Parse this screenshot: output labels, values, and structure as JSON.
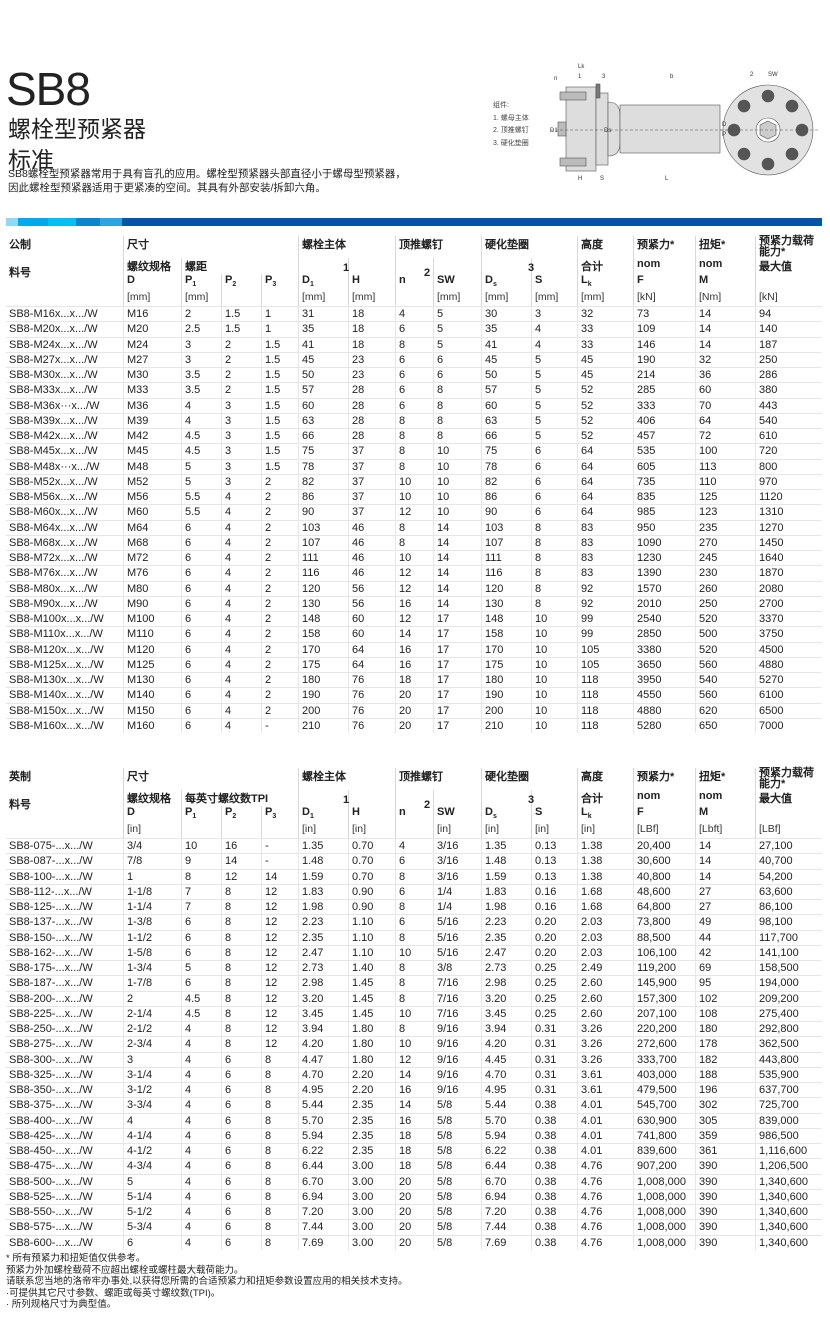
{
  "header": {
    "title": "SB8",
    "subtitle": "螺栓型预紧器",
    "variant": "标准",
    "description": [
      "SB8螺栓型预紧器常用于具有盲孔的应用。螺栓型预紧器头部直径小于螺母型预紧器，",
      "因此螺栓型预紧器适用于更紧凑的空间。其具有外部安装/拆卸六角。"
    ]
  },
  "diagram": {
    "legend_title": "组件:",
    "legend": [
      "1.  螺母主体",
      "2.  顶推螺钉",
      "3.  硬化垫圈"
    ],
    "labels": {
      "lk": "Lk",
      "b": "b",
      "one": "1",
      "three": "3",
      "n": "n",
      "d1": "D1",
      "ds": "Ds",
      "d": "D",
      "p": "P",
      "h": "H",
      "s": "S",
      "l": "L",
      "two": "2",
      "sw": "SW"
    }
  },
  "banner_colors": [
    "#8ed8f8",
    "#00a9e8",
    "#00c0f0",
    "#0c86c6",
    "#2fa4dc",
    "#0057a0"
  ],
  "metric": {
    "groups": [
      "公制",
      "尺寸",
      "螺栓主体",
      "顶推螺钉",
      "硬化垫圈",
      "高度",
      "预紧力*",
      "扭矩*",
      "预紧力载荷能力*"
    ],
    "group_nums": [
      "1",
      "2",
      "3"
    ],
    "sub": {
      "part": "料号",
      "thread": "螺纹规格",
      "pitch": "螺距",
      "total": "合计",
      "nom_f": "nom",
      "nom_m": "nom",
      "max": "最大值"
    },
    "symbols": [
      "D",
      "P",
      "P",
      "P",
      "D",
      "H",
      "n",
      "SW",
      "D",
      "S",
      "L",
      "F",
      "M"
    ],
    "subs": [
      "",
      "1",
      "2",
      "3",
      "1",
      "",
      "",
      "",
      "s",
      "",
      "k",
      "",
      ""
    ],
    "units": [
      "[mm]",
      "[mm]",
      "",
      "",
      "[mm]",
      "[mm]",
      "",
      "[mm]",
      "[mm]",
      "[mm]",
      "[mm]",
      "[kN]",
      "[Nm]",
      "[kN]"
    ],
    "rows": [
      [
        "SB8-M16x...x.../W",
        "M16",
        "2",
        "1.5",
        "1",
        "31",
        "18",
        "4",
        "5",
        "30",
        "3",
        "32",
        "73",
        "14",
        "94"
      ],
      [
        "SB8-M20x...x.../W",
        "M20",
        "2.5",
        "1.5",
        "1",
        "35",
        "18",
        "6",
        "5",
        "35",
        "4",
        "33",
        "109",
        "14",
        "140"
      ],
      [
        "SB8-M24x...x.../W",
        "M24",
        "3",
        "2",
        "1.5",
        "41",
        "18",
        "8",
        "5",
        "41",
        "4",
        "33",
        "146",
        "14",
        "187"
      ],
      [
        "SB8-M27x...x.../W",
        "M27",
        "3",
        "2",
        "1.5",
        "45",
        "23",
        "6",
        "6",
        "45",
        "5",
        "45",
        "190",
        "32",
        "250"
      ],
      [
        "SB8-M30x...x.../W",
        "M30",
        "3.5",
        "2",
        "1.5",
        "50",
        "23",
        "6",
        "6",
        "50",
        "5",
        "45",
        "214",
        "36",
        "286"
      ],
      [
        "SB8-M33x...x.../W",
        "M33",
        "3.5",
        "2",
        "1.5",
        "57",
        "28",
        "6",
        "8",
        "57",
        "5",
        "52",
        "285",
        "60",
        "380"
      ],
      [
        "SB8-M36x···x.../W",
        "M36",
        "4",
        "3",
        "1.5",
        "60",
        "28",
        "6",
        "8",
        "60",
        "5",
        "52",
        "333",
        "70",
        "443"
      ],
      [
        "SB8-M39x...x.../W",
        "M39",
        "4",
        "3",
        "1.5",
        "63",
        "28",
        "8",
        "8",
        "63",
        "5",
        "52",
        "406",
        "64",
        "540"
      ],
      [
        "SB8-M42x...x.../W",
        "M42",
        "4.5",
        "3",
        "1.5",
        "66",
        "28",
        "8",
        "8",
        "66",
        "5",
        "52",
        "457",
        "72",
        "610"
      ],
      [
        "SB8-M45x...x.../W",
        "M45",
        "4.5",
        "3",
        "1.5",
        "75",
        "37",
        "8",
        "10",
        "75",
        "6",
        "64",
        "535",
        "100",
        "720"
      ],
      [
        "SB8-M48x···x.../W",
        "M48",
        "5",
        "3",
        "1.5",
        "78",
        "37",
        "8",
        "10",
        "78",
        "6",
        "64",
        "605",
        "113",
        "800"
      ],
      [
        "SB8-M52x...x.../W",
        "M52",
        "5",
        "3",
        "2",
        "82",
        "37",
        "10",
        "10",
        "82",
        "6",
        "64",
        "735",
        "110",
        "970"
      ],
      [
        "SB8-M56x...x.../W",
        "M56",
        "5.5",
        "4",
        "2",
        "86",
        "37",
        "10",
        "10",
        "86",
        "6",
        "64",
        "835",
        "125",
        "1120"
      ],
      [
        "SB8-M60x...x.../W",
        "M60",
        "5.5",
        "4",
        "2",
        "90",
        "37",
        "12",
        "10",
        "90",
        "6",
        "64",
        "985",
        "123",
        "1310"
      ],
      [
        "SB8-M64x...x.../W",
        "M64",
        "6",
        "4",
        "2",
        "103",
        "46",
        "8",
        "14",
        "103",
        "8",
        "83",
        "950",
        "235",
        "1270"
      ],
      [
        "SB8-M68x...x.../W",
        "M68",
        "6",
        "4",
        "2",
        "107",
        "46",
        "8",
        "14",
        "107",
        "8",
        "83",
        "1090",
        "270",
        "1450"
      ],
      [
        "SB8-M72x...x.../W",
        "M72",
        "6",
        "4",
        "2",
        "111",
        "46",
        "10",
        "14",
        "111",
        "8",
        "83",
        "1230",
        "245",
        "1640"
      ],
      [
        "SB8-M76x...x.../W",
        "M76",
        "6",
        "4",
        "2",
        "116",
        "46",
        "12",
        "14",
        "116",
        "8",
        "83",
        "1390",
        "230",
        "1870"
      ],
      [
        "SB8-M80x...x.../W",
        "M80",
        "6",
        "4",
        "2",
        "120",
        "56",
        "12",
        "14",
        "120",
        "8",
        "92",
        "1570",
        "260",
        "2080"
      ],
      [
        "SB8-M90x...x.../W",
        "M90",
        "6",
        "4",
        "2",
        "130",
        "56",
        "16",
        "14",
        "130",
        "8",
        "92",
        "2010",
        "250",
        "2700"
      ],
      [
        "SB8-M100x...x.../W",
        "M100",
        "6",
        "4",
        "2",
        "148",
        "60",
        "12",
        "17",
        "148",
        "10",
        "99",
        "2540",
        "520",
        "3370"
      ],
      [
        "SB8-M110x...x.../W",
        "M110",
        "6",
        "4",
        "2",
        "158",
        "60",
        "14",
        "17",
        "158",
        "10",
        "99",
        "2850",
        "500",
        "3750"
      ],
      [
        "SB8-M120x...x.../W",
        "M120",
        "6",
        "4",
        "2",
        "170",
        "64",
        "16",
        "17",
        "170",
        "10",
        "105",
        "3380",
        "520",
        "4500"
      ],
      [
        "SB8-M125x...x.../W",
        "M125",
        "6",
        "4",
        "2",
        "175",
        "64",
        "16",
        "17",
        "175",
        "10",
        "105",
        "3650",
        "560",
        "4880"
      ],
      [
        "SB8-M130x...x.../W",
        "M130",
        "6",
        "4",
        "2",
        "180",
        "76",
        "18",
        "17",
        "180",
        "10",
        "118",
        "3950",
        "540",
        "5270"
      ],
      [
        "SB8-M140x...x.../W",
        "M140",
        "6",
        "4",
        "2",
        "190",
        "76",
        "20",
        "17",
        "190",
        "10",
        "118",
        "4550",
        "560",
        "6100"
      ],
      [
        "SB8-M150x...x.../W",
        "M150",
        "6",
        "4",
        "2",
        "200",
        "76",
        "20",
        "17",
        "200",
        "10",
        "118",
        "4880",
        "620",
        "6500"
      ],
      [
        "SB8-M160x...x.../W",
        "M160",
        "6",
        "4",
        "-",
        "210",
        "76",
        "20",
        "17",
        "210",
        "10",
        "118",
        "5280",
        "650",
        "7000"
      ]
    ]
  },
  "imperial": {
    "groups": [
      "英制",
      "尺寸",
      "螺栓主体",
      "顶推螺钉",
      "硬化垫圈",
      "高度",
      "预紧力*",
      "扭矩*",
      "预紧力载荷能力*"
    ],
    "group_nums": [
      "1",
      "2",
      "3"
    ],
    "sub": {
      "part": "料号",
      "thread": "螺纹规格",
      "pitch": "每英寸螺纹数TPI",
      "total": "合计",
      "nom_f": "nom",
      "nom_m": "nom",
      "max": "最大值"
    },
    "symbols": [
      "D",
      "P",
      "P",
      "P",
      "D",
      "H",
      "n",
      "SW",
      "D",
      "S",
      "L",
      "F",
      "M"
    ],
    "subs": [
      "",
      "1",
      "2",
      "3",
      "1",
      "",
      "",
      "",
      "s",
      "",
      "k",
      "",
      ""
    ],
    "units": [
      "[in]",
      "",
      "",
      "",
      "[in]",
      "[in]",
      "",
      "[in]",
      "[in]",
      "[in]",
      "[in]",
      "[LBf]",
      "[Lbft]",
      "[LBf]"
    ],
    "rows": [
      [
        "SB8-075-...x.../W",
        "3/4",
        "10",
        "16",
        "-",
        "1.35",
        "0.70",
        "4",
        "3/16",
        "1.35",
        "0.13",
        "1.38",
        "20,400",
        "14",
        "27,100"
      ],
      [
        "SB8-087-...x.../W",
        "7/8",
        "9",
        "14",
        "-",
        "1.48",
        "0.70",
        "6",
        "3/16",
        "1.48",
        "0.13",
        "1.38",
        "30,600",
        "14",
        "40,700"
      ],
      [
        "SB8-100-...x.../W",
        "1",
        "8",
        "12",
        "14",
        "1.59",
        "0.70",
        "8",
        "3/16",
        "1.59",
        "0.13",
        "1.38",
        "40,800",
        "14",
        "54,200"
      ],
      [
        "SB8-112-...x.../W",
        "1-1/8",
        "7",
        "8",
        "12",
        "1.83",
        "0.90",
        "6",
        "1/4",
        "1.83",
        "0.16",
        "1.68",
        "48,600",
        "27",
        "63,600"
      ],
      [
        "SB8-125-...x.../W",
        "1-1/4",
        "7",
        "8",
        "12",
        "1.98",
        "0.90",
        "8",
        "1/4",
        "1.98",
        "0.16",
        "1.68",
        "64,800",
        "27",
        "86,100"
      ],
      [
        "SB8-137-...x.../W",
        "1-3/8",
        "6",
        "8",
        "12",
        "2.23",
        "1.10",
        "6",
        "5/16",
        "2.23",
        "0.20",
        "2.03",
        "73,800",
        "49",
        "98,100"
      ],
      [
        "SB8-150-...x.../W",
        "1-1/2",
        "6",
        "8",
        "12",
        "2.35",
        "1.10",
        "8",
        "5/16",
        "2.35",
        "0.20",
        "2.03",
        "88,500",
        "44",
        "117,700"
      ],
      [
        "SB8-162-...x.../W",
        "1-5/8",
        "6",
        "8",
        "12",
        "2.47",
        "1.10",
        "10",
        "5/16",
        "2.47",
        "0.20",
        "2.03",
        "106,100",
        "42",
        "141,100"
      ],
      [
        "SB8-175-...x.../W",
        "1-3/4",
        "5",
        "8",
        "12",
        "2.73",
        "1.40",
        "8",
        "3/8",
        "2.73",
        "0.25",
        "2.49",
        "119,200",
        "69",
        "158,500"
      ],
      [
        "SB8-187-...x.../W",
        "1-7/8",
        "6",
        "8",
        "12",
        "2.98",
        "1.45",
        "8",
        "7/16",
        "2.98",
        "0.25",
        "2.60",
        "145,900",
        "95",
        "194,000"
      ],
      [
        "SB8-200-...x.../W",
        "2",
        "4.5",
        "8",
        "12",
        "3.20",
        "1.45",
        "8",
        "7/16",
        "3.20",
        "0.25",
        "2.60",
        "157,300",
        "102",
        "209,200"
      ],
      [
        "SB8-225-...x.../W",
        "2-1/4",
        "4.5",
        "8",
        "12",
        "3.45",
        "1.45",
        "10",
        "7/16",
        "3.45",
        "0.25",
        "2.60",
        "207,100",
        "108",
        "275,400"
      ],
      [
        "SB8-250-...x.../W",
        "2-1/2",
        "4",
        "8",
        "12",
        "3.94",
        "1.80",
        "8",
        "9/16",
        "3.94",
        "0.31",
        "3.26",
        "220,200",
        "180",
        "292,800"
      ],
      [
        "SB8-275-...x.../W",
        "2-3/4",
        "4",
        "8",
        "12",
        "4.20",
        "1.80",
        "10",
        "9/16",
        "4.20",
        "0.31",
        "3.26",
        "272,600",
        "178",
        "362,500"
      ],
      [
        "SB8-300-...x.../W",
        "3",
        "4",
        "6",
        "8",
        "4.47",
        "1.80",
        "12",
        "9/16",
        "4.45",
        "0.31",
        "3.26",
        "333,700",
        "182",
        "443,800"
      ],
      [
        "SB8-325-...x.../W",
        "3-1/4",
        "4",
        "6",
        "8",
        "4.70",
        "2.20",
        "14",
        "9/16",
        "4.70",
        "0.31",
        "3.61",
        "403,000",
        "188",
        "535,900"
      ],
      [
        "SB8-350-...x.../W",
        "3-1/2",
        "4",
        "6",
        "8",
        "4.95",
        "2.20",
        "16",
        "9/16",
        "4.95",
        "0.31",
        "3.61",
        "479,500",
        "196",
        "637,700"
      ],
      [
        "SB8-375-...x.../W",
        "3-3/4",
        "4",
        "6",
        "8",
        "5.44",
        "2.35",
        "14",
        "5/8",
        "5.44",
        "0.38",
        "4.01",
        "545,700",
        "302",
        "725,700"
      ],
      [
        "SB8-400-...x.../W",
        "4",
        "4",
        "6",
        "8",
        "5.70",
        "2.35",
        "16",
        "5/8",
        "5.70",
        "0.38",
        "4.01",
        "630,900",
        "305",
        "839,000"
      ],
      [
        "SB8-425-...x.../W",
        "4-1/4",
        "4",
        "6",
        "8",
        "5.94",
        "2.35",
        "18",
        "5/8",
        "5.94",
        "0.38",
        "4.01",
        "741,800",
        "359",
        "986,500"
      ],
      [
        "SB8-450-...x.../W",
        "4-1/2",
        "4",
        "6",
        "8",
        "6.22",
        "2.35",
        "18",
        "5/8",
        "6.22",
        "0.38",
        "4.01",
        "839,600",
        "361",
        "1,116,600"
      ],
      [
        "SB8-475-...x.../W",
        "4-3/4",
        "4",
        "6",
        "8",
        "6.44",
        "3.00",
        "18",
        "5/8",
        "6.44",
        "0.38",
        "4.76",
        "907,200",
        "390",
        "1,206,500"
      ],
      [
        "SB8-500-...x.../W",
        "5",
        "4",
        "6",
        "8",
        "6.70",
        "3.00",
        "20",
        "5/8",
        "6.70",
        "0.38",
        "4.76",
        "1,008,000",
        "390",
        "1,340,600"
      ],
      [
        "SB8-525-...x.../W",
        "5-1/4",
        "4",
        "6",
        "8",
        "6.94",
        "3.00",
        "20",
        "5/8",
        "6.94",
        "0.38",
        "4.76",
        "1,008,000",
        "390",
        "1,340,600"
      ],
      [
        "SB8-550-...x.../W",
        "5-1/2",
        "4",
        "6",
        "8",
        "7.20",
        "3.00",
        "20",
        "5/8",
        "7.20",
        "0.38",
        "4.76",
        "1,008,000",
        "390",
        "1,340,600"
      ],
      [
        "SB8-575-...x.../W",
        "5-3/4",
        "4",
        "6",
        "8",
        "7.44",
        "3.00",
        "20",
        "5/8",
        "7.44",
        "0.38",
        "4.76",
        "1,008,000",
        "390",
        "1,340,600"
      ],
      [
        "SB8-600-...x.../W",
        "6",
        "4",
        "6",
        "8",
        "7.69",
        "3.00",
        "20",
        "5/8",
        "7.69",
        "0.38",
        "4.76",
        "1,008,000",
        "390",
        "1,340,600"
      ]
    ]
  },
  "notes": [
    "* 所有预紧力和扭矩值仅供参考。",
    " 预紧力外加螺栓载荷不应超出螺栓或螺柱最大载荷能力。",
    " 请联系您当地的洛帝牢办事处,以获得您所需的合适预紧力和扭矩参数设置应用的相关技术支持。",
    "·可提供其它尺寸参数、螺距或每英寸螺纹数(TPI)。",
    "· 所列规格尺寸为典型值。"
  ]
}
